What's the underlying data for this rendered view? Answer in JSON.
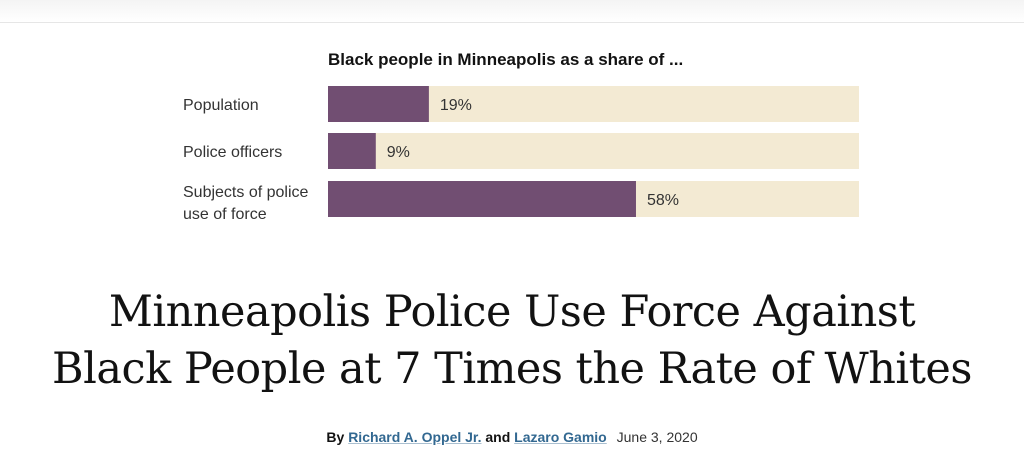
{
  "headline_lines": [
    "Minneapolis Police Use Force Against",
    "Black People at 7 Times the Rate of Whites"
  ],
  "byline": {
    "prefix": "By",
    "author1": "Richard A. Oppel Jr.",
    "joiner": "and",
    "author2": "Lazaro Gamio",
    "date": "June 3, 2020"
  },
  "colors": {
    "bar": "#714e72",
    "track": "#f3ead3",
    "link": "#326891"
  },
  "chart_data": {
    "type": "bar",
    "orientation": "horizontal",
    "title": "Black people in Minneapolis as a share of ...",
    "categories": [
      [
        "Population"
      ],
      [
        "Police officers"
      ],
      [
        "Subjects of police",
        "use of force"
      ]
    ],
    "values": [
      19,
      9,
      58
    ],
    "value_labels": [
      "19%",
      "9%",
      "58%"
    ],
    "xlim": [
      0,
      100
    ],
    "grid": false
  }
}
